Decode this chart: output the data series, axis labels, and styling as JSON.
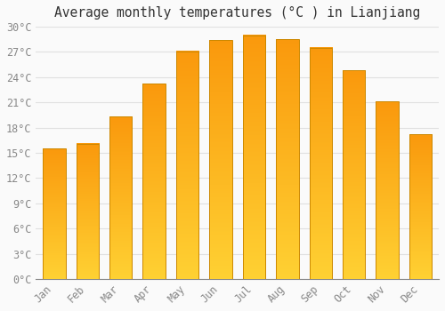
{
  "title": "Average monthly temperatures (°C ) in Lianjiang",
  "months": [
    "Jan",
    "Feb",
    "Mar",
    "Apr",
    "May",
    "Jun",
    "Jul",
    "Aug",
    "Sep",
    "Oct",
    "Nov",
    "Dec"
  ],
  "values": [
    15.5,
    16.1,
    19.3,
    23.2,
    27.1,
    28.4,
    29.0,
    28.5,
    27.5,
    24.8,
    21.1,
    17.2
  ],
  "bar_color": "#FFA500",
  "bar_edge_color": "#CC8800",
  "background_color": "#FAFAFA",
  "grid_color": "#E0E0E0",
  "title_fontsize": 10.5,
  "tick_fontsize": 8.5,
  "ytick_step": 3,
  "ymax": 30,
  "ymin": 0,
  "title_color": "#333333",
  "tick_color": "#888888"
}
